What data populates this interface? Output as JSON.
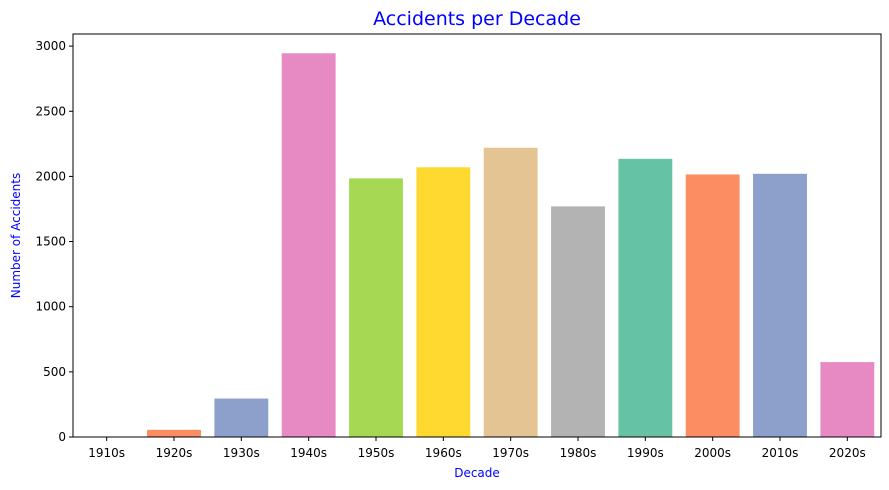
{
  "chart_data": {
    "type": "bar",
    "title": "Accidents per Decade",
    "xlabel": "Decade",
    "ylabel": "Number of Accidents",
    "categories": [
      "1910s",
      "1920s",
      "1930s",
      "1940s",
      "1950s",
      "1960s",
      "1970s",
      "1980s",
      "1990s",
      "2000s",
      "2010s",
      "2020s"
    ],
    "values": [
      2,
      55,
      295,
      2945,
      1985,
      2070,
      2220,
      1770,
      2135,
      2015,
      2020,
      575
    ],
    "colors": [
      "#66c2a5",
      "#fc8d62",
      "#8da0cb",
      "#e78ac3",
      "#a6d854",
      "#ffd92f",
      "#e5c494",
      "#b3b3b3",
      "#66c2a5",
      "#fc8d62",
      "#8da0cb",
      "#e78ac3"
    ],
    "yticks": [
      0,
      500,
      1000,
      1500,
      2000,
      2500,
      3000
    ],
    "ylim": [
      0,
      3093
    ],
    "grid": false,
    "legend": "none",
    "title_color": "#0000ff",
    "label_color": "#0000ff"
  }
}
